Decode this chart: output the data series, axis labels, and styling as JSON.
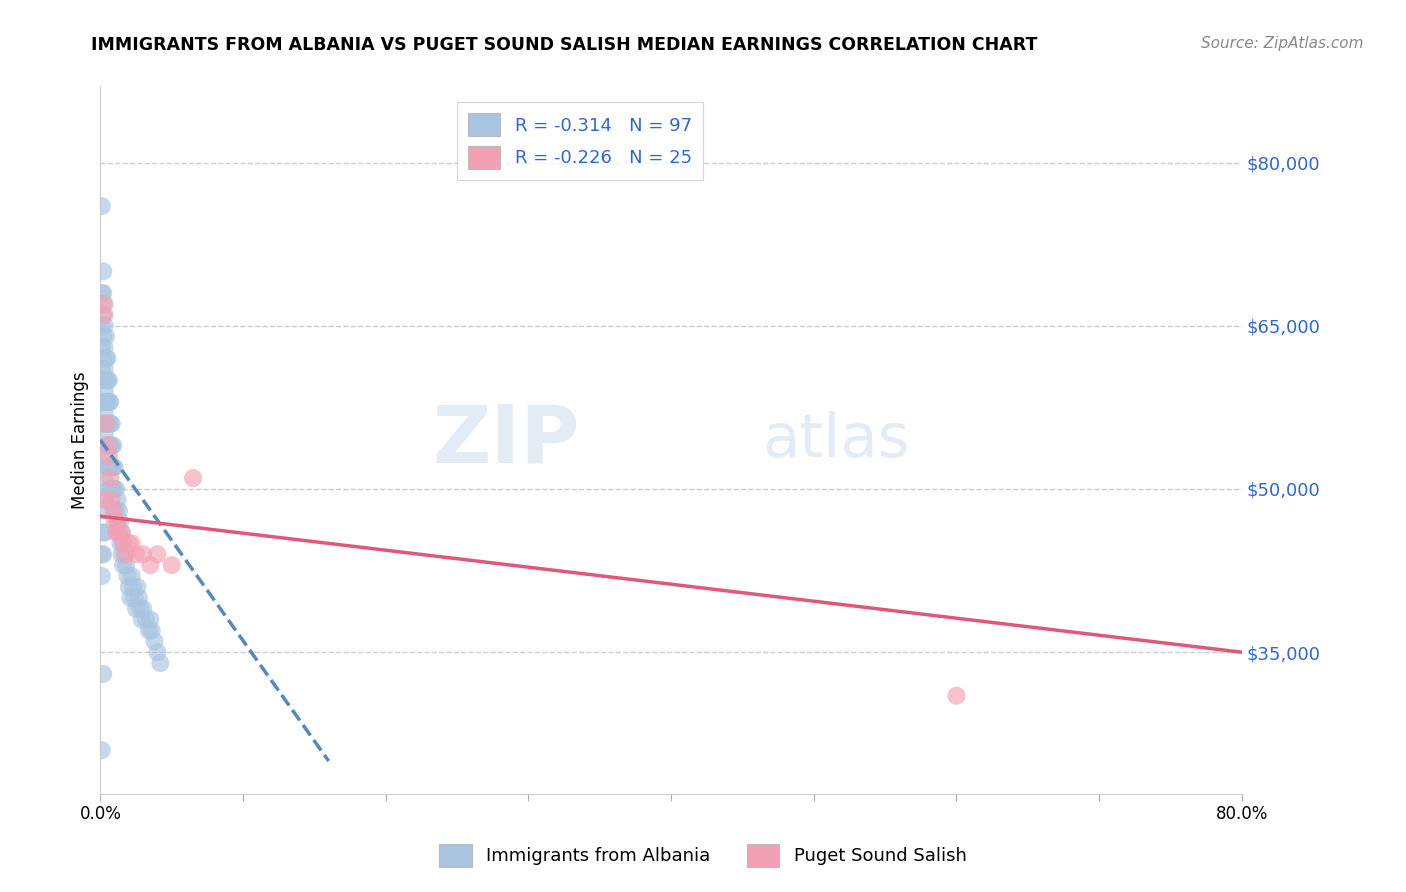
{
  "title": "IMMIGRANTS FROM ALBANIA VS PUGET SOUND SALISH MEDIAN EARNINGS CORRELATION CHART",
  "source": "Source: ZipAtlas.com",
  "ylabel": "Median Earnings",
  "xlim": [
    0.0,
    0.8
  ],
  "ylim": [
    22000,
    87000
  ],
  "yticks": [
    35000,
    50000,
    65000,
    80000
  ],
  "ytick_labels": [
    "$35,000",
    "$50,000",
    "$65,000",
    "$80,000"
  ],
  "xticks": [
    0.0,
    0.1,
    0.2,
    0.3,
    0.4,
    0.5,
    0.6,
    0.7,
    0.8
  ],
  "legend_label1": "Immigrants from Albania",
  "legend_label2": "Puget Sound Salish",
  "R1": -0.314,
  "N1": 97,
  "R2": -0.226,
  "N2": 25,
  "color_blue": "#a8c4e0",
  "color_pink": "#f4a0b4",
  "color_blue_line": "#5588bb",
  "color_pink_line": "#e05878",
  "color_ytick": "#3366cc",
  "watermark_zip": "ZIP",
  "watermark_atlas": "atlas",
  "albania_x": [
    0.001,
    0.001,
    0.001,
    0.001,
    0.001,
    0.002,
    0.002,
    0.002,
    0.002,
    0.002,
    0.002,
    0.002,
    0.002,
    0.003,
    0.003,
    0.003,
    0.003,
    0.003,
    0.003,
    0.003,
    0.003,
    0.003,
    0.003,
    0.004,
    0.004,
    0.004,
    0.004,
    0.004,
    0.004,
    0.005,
    0.005,
    0.005,
    0.005,
    0.005,
    0.005,
    0.006,
    0.006,
    0.006,
    0.006,
    0.006,
    0.006,
    0.007,
    0.007,
    0.007,
    0.007,
    0.007,
    0.008,
    0.008,
    0.008,
    0.008,
    0.009,
    0.009,
    0.009,
    0.01,
    0.01,
    0.01,
    0.011,
    0.011,
    0.012,
    0.012,
    0.013,
    0.013,
    0.014,
    0.014,
    0.015,
    0.015,
    0.016,
    0.016,
    0.017,
    0.018,
    0.019,
    0.02,
    0.021,
    0.022,
    0.023,
    0.024,
    0.025,
    0.026,
    0.027,
    0.028,
    0.029,
    0.03,
    0.032,
    0.034,
    0.035,
    0.036,
    0.038,
    0.04,
    0.042,
    0.001,
    0.001,
    0.002,
    0.002,
    0.003,
    0.003,
    0.002,
    0.001
  ],
  "albania_y": [
    76000,
    68000,
    65000,
    63000,
    61000,
    70000,
    68000,
    66000,
    64000,
    62000,
    60000,
    58000,
    56000,
    67000,
    65000,
    63000,
    61000,
    59000,
    57000,
    55000,
    53000,
    51000,
    49000,
    64000,
    62000,
    60000,
    58000,
    56000,
    54000,
    62000,
    60000,
    58000,
    56000,
    54000,
    52000,
    60000,
    58000,
    56000,
    54000,
    52000,
    50000,
    58000,
    56000,
    54000,
    52000,
    50000,
    56000,
    54000,
    52000,
    50000,
    54000,
    52000,
    50000,
    52000,
    50000,
    48000,
    50000,
    48000,
    49000,
    47000,
    48000,
    46000,
    47000,
    45000,
    46000,
    44000,
    45000,
    43000,
    44000,
    43000,
    42000,
    41000,
    40000,
    42000,
    41000,
    40000,
    39000,
    41000,
    40000,
    39000,
    38000,
    39000,
    38000,
    37000,
    38000,
    37000,
    36000,
    35000,
    34000,
    44000,
    42000,
    46000,
    44000,
    48000,
    46000,
    33000,
    26000
  ],
  "salish_x": [
    0.002,
    0.003,
    0.004,
    0.005,
    0.006,
    0.007,
    0.008,
    0.009,
    0.01,
    0.011,
    0.012,
    0.013,
    0.015,
    0.016,
    0.018,
    0.02,
    0.022,
    0.025,
    0.03,
    0.035,
    0.04,
    0.05,
    0.065,
    0.6,
    0.003
  ],
  "salish_y": [
    67000,
    66000,
    56000,
    54000,
    53000,
    51000,
    49000,
    48000,
    47000,
    46000,
    47000,
    46000,
    46000,
    45000,
    44000,
    45000,
    45000,
    44000,
    44000,
    43000,
    44000,
    43000,
    51000,
    31000,
    49000
  ],
  "blue_line_x0": 0.0,
  "blue_line_y0": 54500,
  "blue_line_x1": 0.16,
  "blue_line_y1": 25000,
  "pink_line_x0": 0.0,
  "pink_line_y0": 47500,
  "pink_line_x1": 0.8,
  "pink_line_y1": 35000
}
